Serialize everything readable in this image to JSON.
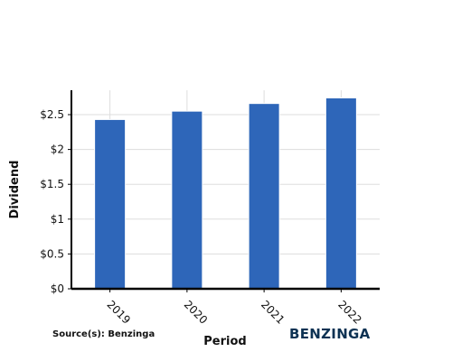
{
  "chart_data": {
    "type": "bar",
    "categories": [
      "2019",
      "2020",
      "2021",
      "2022"
    ],
    "values": [
      2.43,
      2.55,
      2.66,
      2.74
    ],
    "title": "",
    "xlabel": "Period",
    "ylabel": "Dividend",
    "ylim": [
      0,
      2.85
    ],
    "yticks": [
      0,
      0.5,
      1,
      1.5,
      2,
      2.5
    ],
    "ytick_labels": [
      "$0",
      "$0.5",
      "$1",
      "$1.5",
      "$2",
      "$2.5"
    ],
    "grid": true,
    "legend": "none"
  },
  "source": "Source(s): Benzinga",
  "brand": "BENZINGA",
  "colors": {
    "bar": "#2e66b9",
    "bar_edge": "#ffffff",
    "grid": "#dddddd",
    "axis": "#000000",
    "brand": "#0d3253"
  }
}
